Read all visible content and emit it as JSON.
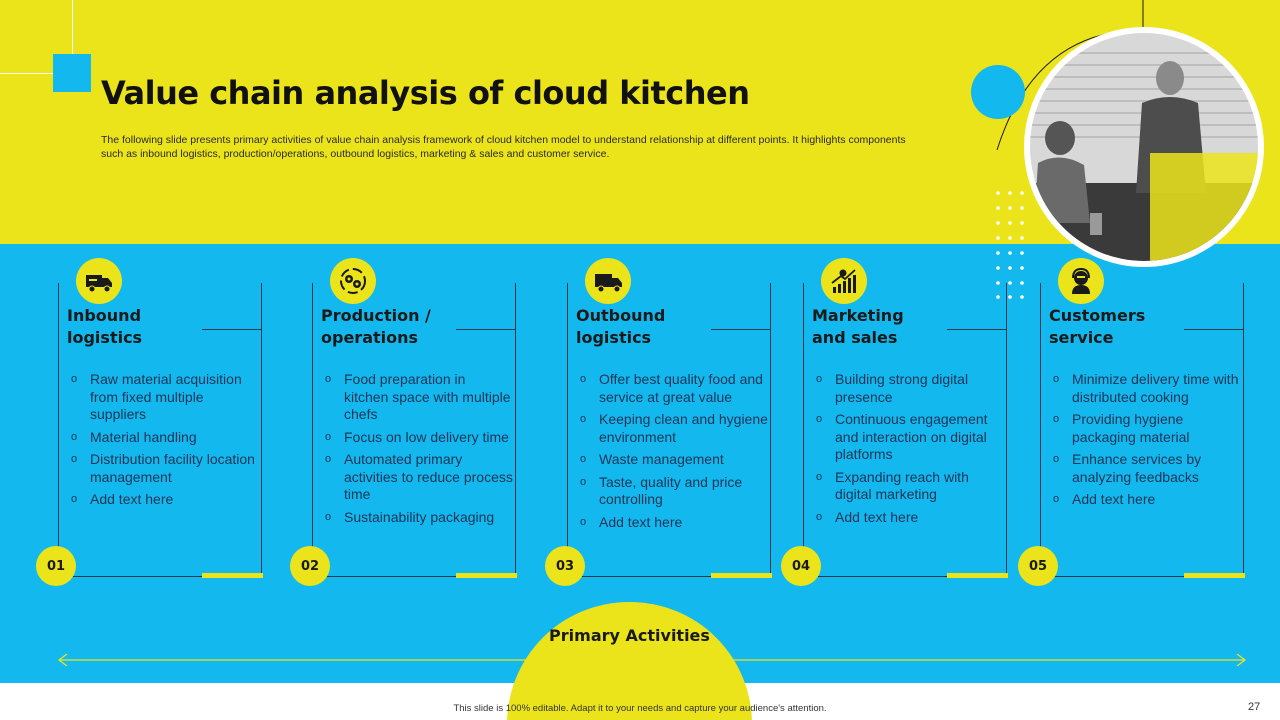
{
  "title": "Value chain analysis of cloud kitchen",
  "subtitle": "The following slide presents primary activities of value chain analysis framework of cloud kitchen model to understand relationship at different points. It highlights components such as inbound logistics, production/operations, outbound logistics, marketing & sales and customer service.",
  "colors": {
    "yellow": "#ece41b",
    "blue": "#12b8ee",
    "dark": "#1a1a1a"
  },
  "columns": [
    {
      "icon": "delivery-truck-icon",
      "heading_1": "Inbound",
      "heading_2": "logistics",
      "number": "01",
      "items": [
        "Raw material acquisition from fixed multiple suppliers",
        "Material handling",
        "Distribution facility location management",
        "Add text here"
      ]
    },
    {
      "icon": "gears-cycle-icon",
      "heading_1": "Production /",
      "heading_2": "operations",
      "number": "02",
      "items": [
        "Food preparation in kitchen space with multiple chefs",
        "Focus on low delivery time",
        "Automated primary activities to reduce process time",
        "Sustainability packaging"
      ]
    },
    {
      "icon": "truck-icon",
      "heading_1": "Outbound",
      "heading_2": "logistics",
      "number": "03",
      "items": [
        "Offer best quality food and service at great value",
        "Keeping clean and hygiene environment",
        "Waste management",
        "Taste, quality and price controlling",
        "Add text here"
      ]
    },
    {
      "icon": "growth-chart-icon",
      "heading_1": "Marketing",
      "heading_2": "and sales",
      "number": "04",
      "items": [
        "Building strong digital presence",
        "Continuous engagement and interaction on digital platforms",
        "Expanding reach with digital marketing",
        "Add text here"
      ]
    },
    {
      "icon": "support-agent-icon",
      "heading_1": "Customers",
      "heading_2": "service",
      "number": "05",
      "items": [
        "Minimize delivery time with distributed cooking",
        "Providing hygiene packaging material",
        "Enhance services by analyzing feedbacks",
        "Add text here"
      ]
    }
  ],
  "primary_activities": "Primary Activities",
  "footer": "This slide is 100% editable. Adapt it to your needs and capture your audience's attention.",
  "page_number": "27"
}
